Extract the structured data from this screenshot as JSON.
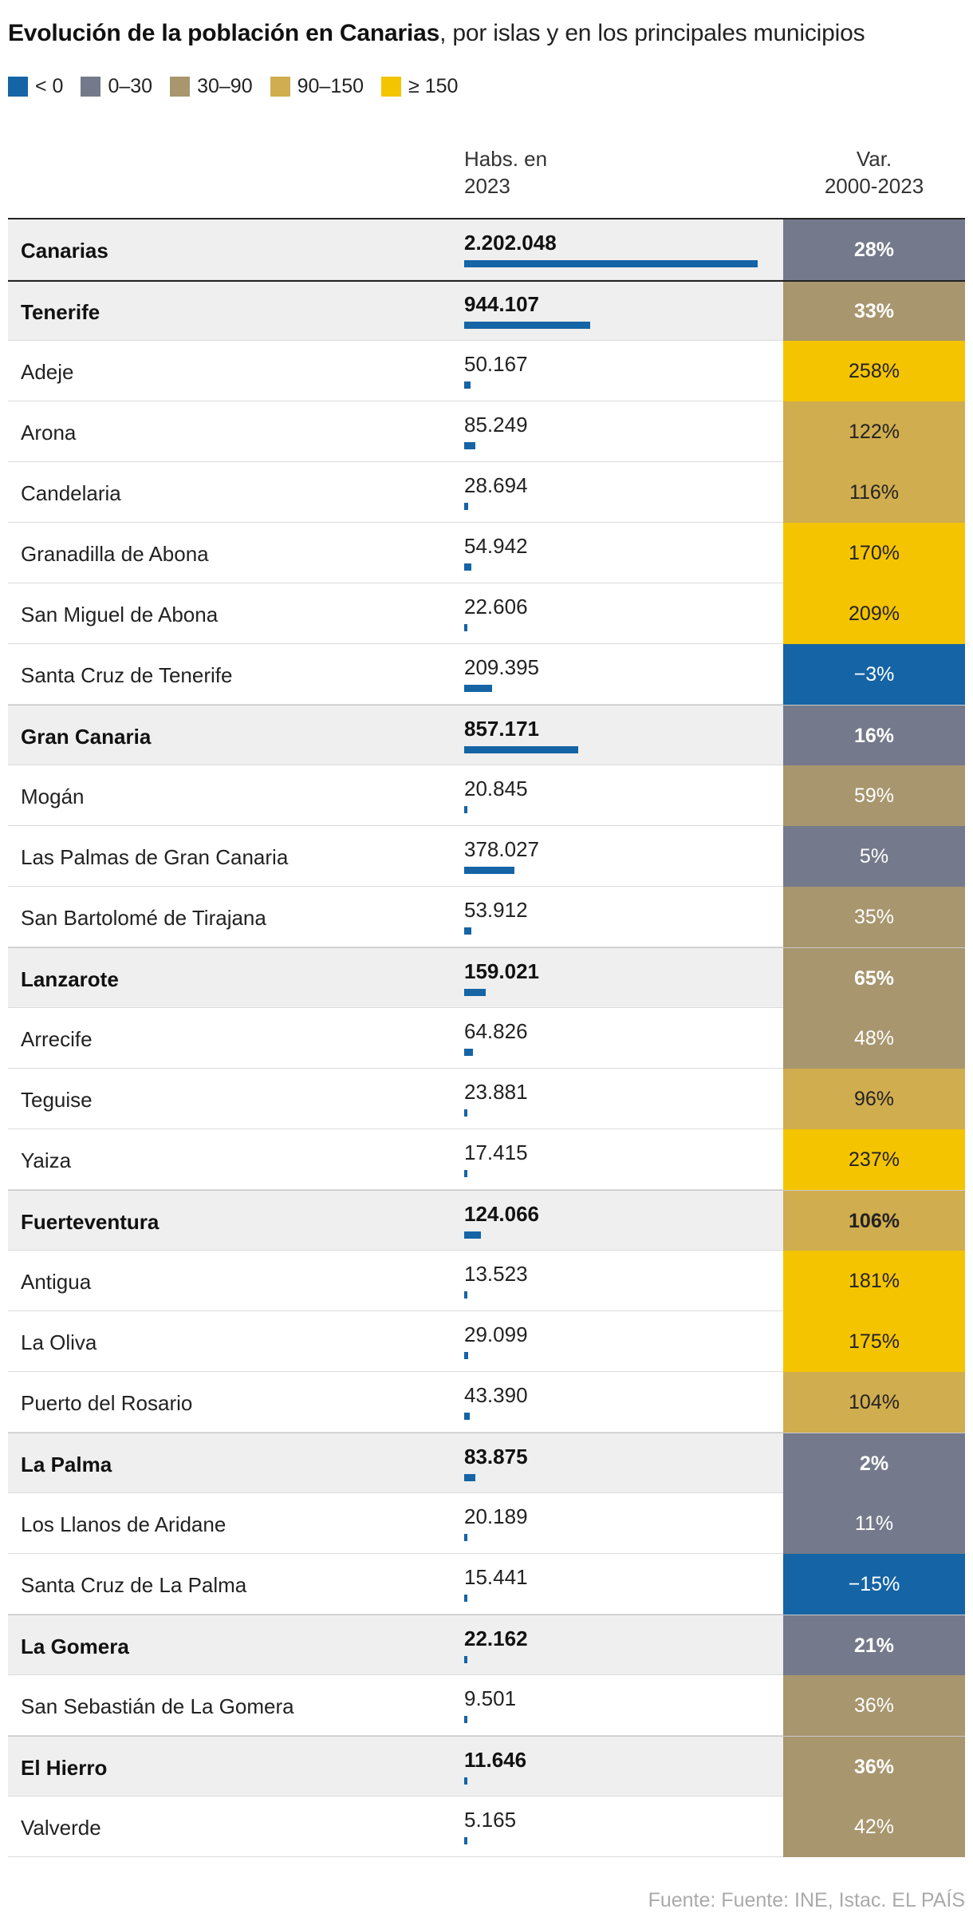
{
  "title": {
    "bold": "Evolución de la población en Canarias",
    "rest": ", por islas y en los principales municipios"
  },
  "legend": [
    {
      "label": "< 0",
      "color": "#1564a6"
    },
    {
      "label": "0–30",
      "color": "#747a8b"
    },
    {
      "label": "30–90",
      "color": "#a8966f"
    },
    {
      "label": "90–150",
      "color": "#d0ad4f"
    },
    {
      "label": "≥ 150",
      "color": "#f5c400"
    }
  ],
  "columns": {
    "habs_line1": "Habs. en",
    "habs_line2": "2023",
    "var_line1": "Var.",
    "var_line2": "2000-2023"
  },
  "chart_data": {
    "type": "table",
    "max_value": 2202048,
    "rows": [
      {
        "name": "Canarias",
        "value": 2202048,
        "value_label": "2.202.048",
        "var": "28%",
        "var_num": 28,
        "total": true
      },
      {
        "name": "Tenerife",
        "value": 944107,
        "value_label": "944.107",
        "var": "33%",
        "var_num": 33,
        "total": true
      },
      {
        "name": "Adeje",
        "value": 50167,
        "value_label": "50.167",
        "var": "258%",
        "var_num": 258,
        "total": false
      },
      {
        "name": "Arona",
        "value": 85249,
        "value_label": "85.249",
        "var": "122%",
        "var_num": 122,
        "total": false
      },
      {
        "name": "Candelaria",
        "value": 28694,
        "value_label": "28.694",
        "var": "116%",
        "var_num": 116,
        "total": false
      },
      {
        "name": "Granadilla de Abona",
        "value": 54942,
        "value_label": "54.942",
        "var": "170%",
        "var_num": 170,
        "total": false
      },
      {
        "name": "San Miguel de Abona",
        "value": 22606,
        "value_label": "22.606",
        "var": "209%",
        "var_num": 209,
        "total": false
      },
      {
        "name": "Santa Cruz de Tenerife",
        "value": 209395,
        "value_label": "209.395",
        "var": "−3%",
        "var_num": -3,
        "total": false
      },
      {
        "name": "Gran Canaria",
        "value": 857171,
        "value_label": "857.171",
        "var": "16%",
        "var_num": 16,
        "total": true
      },
      {
        "name": "Mogán",
        "value": 20845,
        "value_label": "20.845",
        "var": "59%",
        "var_num": 59,
        "total": false
      },
      {
        "name": "Las Palmas de Gran Canaria",
        "value": 378027,
        "value_label": "378.027",
        "var": "5%",
        "var_num": 5,
        "total": false
      },
      {
        "name": "San Bartolomé de Tirajana",
        "value": 53912,
        "value_label": "53.912",
        "var": "35%",
        "var_num": 35,
        "total": false
      },
      {
        "name": "Lanzarote",
        "value": 159021,
        "value_label": "159.021",
        "var": "65%",
        "var_num": 65,
        "total": true
      },
      {
        "name": "Arrecife",
        "value": 64826,
        "value_label": "64.826",
        "var": "48%",
        "var_num": 48,
        "total": false
      },
      {
        "name": "Teguise",
        "value": 23881,
        "value_label": "23.881",
        "var": "96%",
        "var_num": 96,
        "total": false
      },
      {
        "name": "Yaiza",
        "value": 17415,
        "value_label": "17.415",
        "var": "237%",
        "var_num": 237,
        "total": false
      },
      {
        "name": "Fuerteventura",
        "value": 124066,
        "value_label": "124.066",
        "var": "106%",
        "var_num": 106,
        "total": true
      },
      {
        "name": "Antigua",
        "value": 13523,
        "value_label": "13.523",
        "var": "181%",
        "var_num": 181,
        "total": false
      },
      {
        "name": "La Oliva",
        "value": 29099,
        "value_label": "29.099",
        "var": "175%",
        "var_num": 175,
        "total": false
      },
      {
        "name": "Puerto del Rosario",
        "value": 43390,
        "value_label": "43.390",
        "var": "104%",
        "var_num": 104,
        "total": false
      },
      {
        "name": "La Palma",
        "value": 83875,
        "value_label": "83.875",
        "var": "2%",
        "var_num": 2,
        "total": true
      },
      {
        "name": "Los Llanos de Aridane",
        "value": 20189,
        "value_label": "20.189",
        "var": "11%",
        "var_num": 11,
        "total": false
      },
      {
        "name": "Santa Cruz de La Palma",
        "value": 15441,
        "value_label": "15.441",
        "var": "−15%",
        "var_num": -15,
        "total": false
      },
      {
        "name": "La Gomera",
        "value": 22162,
        "value_label": "22.162",
        "var": "21%",
        "var_num": 21,
        "total": true
      },
      {
        "name": "San Sebastián de La Gomera",
        "value": 9501,
        "value_label": "9.501",
        "var": "36%",
        "var_num": 36,
        "total": false
      },
      {
        "name": "El Hierro",
        "value": 11646,
        "value_label": "11.646",
        "var": "36%",
        "var_num": 36,
        "total": true
      },
      {
        "name": "Valverde",
        "value": 5165,
        "value_label": "5.165",
        "var": "42%",
        "var_num": 42,
        "total": false
      }
    ]
  },
  "source": "Fuente: Fuente: INE, Istac. EL PAÍS"
}
